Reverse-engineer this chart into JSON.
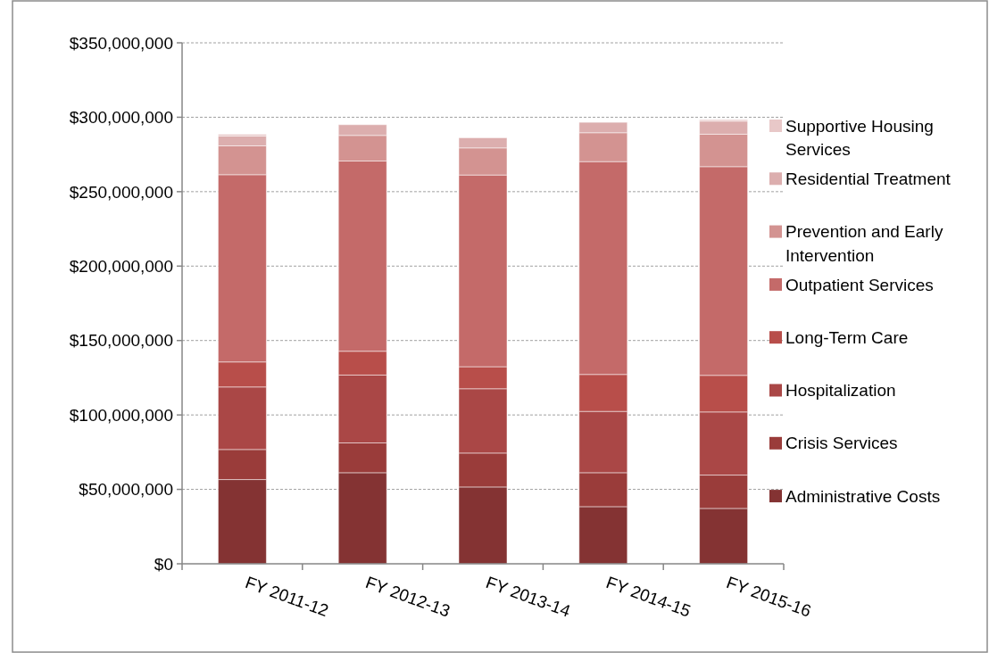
{
  "chart_data": {
    "type": "bar",
    "stacked": true,
    "categories": [
      "FY 2011-12",
      "FY 2012-13",
      "FY 2013-14",
      "FY 2014-15",
      "FY 2015-16"
    ],
    "series": [
      {
        "name": "Administrative Costs",
        "color": "#843333",
        "values": [
          56600000,
          61200000,
          51600000,
          38400000,
          37200000
        ]
      },
      {
        "name": "Crisis Services",
        "color": "#9a3c3a",
        "values": [
          20200000,
          20000000,
          22800000,
          22800000,
          22400000
        ]
      },
      {
        "name": "Hospitalization",
        "color": "#aa4746",
        "values": [
          42000000,
          45600000,
          43200000,
          41200000,
          42400000
        ]
      },
      {
        "name": "Long-Term Care",
        "color": "#b84e4a",
        "values": [
          16800000,
          16000000,
          14800000,
          24800000,
          24600000
        ]
      },
      {
        "name": "Outpatient Services",
        "color": "#c46a69",
        "values": [
          125800000,
          127800000,
          128800000,
          143000000,
          140200000
        ]
      },
      {
        "name": "Prevention and Early Intervention",
        "color": "#d39391",
        "values": [
          19400000,
          17200000,
          18200000,
          19400000,
          21800000
        ]
      },
      {
        "name": "Residential Treatment",
        "color": "#dcaeae",
        "values": [
          6600000,
          7200000,
          6800000,
          7000000,
          8800000
        ]
      },
      {
        "name": "Supportive Housing Services",
        "color": "#e8c8c8",
        "values": [
          1200000,
          0,
          0,
          0,
          1000000
        ]
      }
    ],
    "ylim": [
      0,
      350000000
    ],
    "yticks": [
      {
        "value": 0,
        "label": "$0"
      },
      {
        "value": 50000000,
        "label": "$50,000,000"
      },
      {
        "value": 100000000,
        "label": "$100,000,000"
      },
      {
        "value": 150000000,
        "label": "$150,000,000"
      },
      {
        "value": 200000000,
        "label": "$200,000,000"
      },
      {
        "value": 250000000,
        "label": "$250,000,000"
      },
      {
        "value": 300000000,
        "label": "$300,000,000"
      },
      {
        "value": 350000000,
        "label": "$350,000,000"
      }
    ],
    "grid": "y",
    "legend": "right"
  }
}
